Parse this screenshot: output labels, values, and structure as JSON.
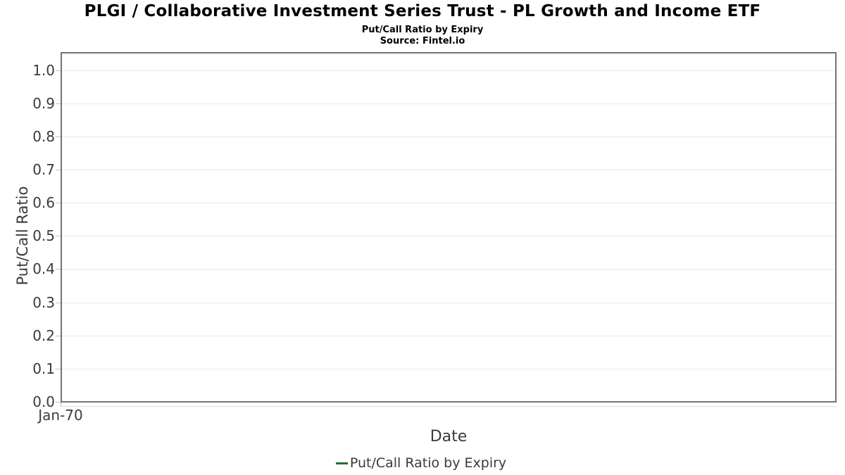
{
  "header": {
    "title": "PLGI / Collaborative Investment Series Trust - PL Growth and Income ETF",
    "subtitle": "Put/Call Ratio by Expiry",
    "source": "Source: Fintel.io"
  },
  "chart_data": {
    "type": "line",
    "title": "PLGI / Collaborative Investment Series Trust - PL Growth and Income ETF",
    "subtitle": "Put/Call Ratio by Expiry",
    "source": "Source: Fintel.io",
    "xlabel": "Date",
    "ylabel": "Put/Call Ratio",
    "x_tick_labels": [
      "Jan-70"
    ],
    "y_tick_labels": [
      "0.0",
      "0.1",
      "0.2",
      "0.3",
      "0.4",
      "0.5",
      "0.6",
      "0.7",
      "0.8",
      "0.9",
      "1.0"
    ],
    "y_tick_values": [
      0.0,
      0.1,
      0.2,
      0.3,
      0.4,
      0.5,
      0.6,
      0.7,
      0.8,
      0.9,
      1.0
    ],
    "ylim": [
      0.0,
      1.05
    ],
    "grid": true,
    "legend_position": "bottom",
    "series": [
      {
        "name": "Put/Call Ratio by Expiry",
        "color": "#276e33",
        "x": [],
        "values": []
      }
    ]
  },
  "colors": {
    "plot_border": "#747474",
    "gridline": "#e8e8e8",
    "tick_mark": "#c2c2c2",
    "axis_text": "#3a3a3a",
    "title_text": "#000000",
    "series_green": "#276e33",
    "background": "#ffffff"
  }
}
